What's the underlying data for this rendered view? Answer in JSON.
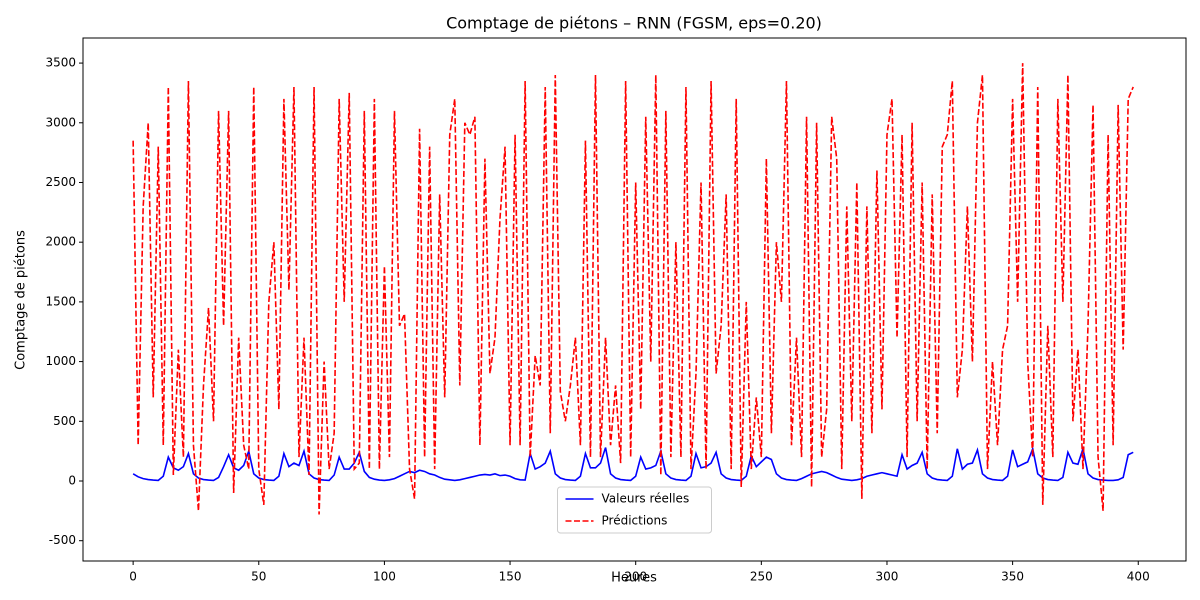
{
  "chart_data": {
    "type": "line",
    "title": "Comptage de piétons – RNN (FGSM, eps=0.20)",
    "xlabel": "Heures",
    "ylabel": "Comptage de piétons",
    "x": [
      0,
      2,
      4,
      6,
      8,
      10,
      12,
      14,
      16,
      18,
      20,
      22,
      24,
      26,
      28,
      30,
      32,
      34,
      36,
      38,
      40,
      42,
      44,
      46,
      48,
      50,
      52,
      54,
      56,
      58,
      60,
      62,
      64,
      66,
      68,
      70,
      72,
      74,
      76,
      78,
      80,
      82,
      84,
      86,
      88,
      90,
      92,
      94,
      96,
      98,
      100,
      102,
      104,
      106,
      108,
      110,
      112,
      114,
      116,
      118,
      120,
      122,
      124,
      126,
      128,
      130,
      132,
      134,
      136,
      138,
      140,
      142,
      144,
      146,
      148,
      150,
      152,
      154,
      156,
      158,
      160,
      162,
      164,
      166,
      168,
      170,
      172,
      174,
      176,
      178,
      180,
      182,
      184,
      186,
      188,
      190,
      192,
      194,
      196,
      198,
      200,
      202,
      204,
      206,
      208,
      210,
      212,
      214,
      216,
      218,
      220,
      222,
      224,
      226,
      228,
      230,
      232,
      234,
      236,
      238,
      240,
      242,
      244,
      246,
      248,
      250,
      252,
      254,
      256,
      258,
      260,
      262,
      264,
      266,
      268,
      270,
      272,
      274,
      276,
      278,
      280,
      282,
      284,
      286,
      288,
      290,
      292,
      294,
      296,
      298,
      300,
      302,
      304,
      306,
      308,
      310,
      312,
      314,
      316,
      318,
      320,
      322,
      324,
      326,
      328,
      330,
      332,
      334,
      336,
      338,
      340,
      342,
      344,
      346,
      348,
      350,
      352,
      354,
      356,
      358,
      360,
      362,
      364,
      366,
      368,
      370,
      372,
      374,
      376,
      378,
      380,
      382,
      384,
      386,
      388,
      390,
      392,
      394,
      396,
      398
    ],
    "series": [
      {
        "name": "Valeurs réelles",
        "color": "#0000ff",
        "dash": false,
        "values": [
          60,
          35,
          20,
          12,
          8,
          5,
          40,
          200,
          110,
          90,
          120,
          230,
          60,
          25,
          12,
          8,
          5,
          30,
          120,
          220,
          110,
          90,
          130,
          250,
          60,
          25,
          12,
          8,
          5,
          40,
          230,
          120,
          150,
          130,
          250,
          60,
          25,
          12,
          8,
          5,
          50,
          200,
          100,
          100,
          150,
          240,
          80,
          30,
          15,
          8,
          5,
          10,
          20,
          40,
          60,
          80,
          70,
          90,
          80,
          60,
          50,
          30,
          15,
          10,
          5,
          10,
          20,
          30,
          40,
          50,
          55,
          50,
          60,
          45,
          50,
          40,
          20,
          10,
          8,
          230,
          100,
          120,
          150,
          250,
          60,
          25,
          12,
          8,
          5,
          40,
          230,
          110,
          110,
          150,
          280,
          60,
          25,
          12,
          8,
          5,
          40,
          200,
          100,
          110,
          130,
          250,
          60,
          25,
          12,
          8,
          5,
          40,
          230,
          110,
          120,
          150,
          240,
          60,
          25,
          12,
          8,
          5,
          40,
          210,
          120,
          160,
          200,
          180,
          60,
          25,
          12,
          8,
          5,
          20,
          40,
          60,
          70,
          80,
          70,
          50,
          30,
          15,
          10,
          5,
          10,
          20,
          40,
          50,
          60,
          70,
          60,
          50,
          40,
          220,
          100,
          130,
          150,
          240,
          60,
          25,
          12,
          8,
          5,
          40,
          270,
          100,
          140,
          150,
          260,
          60,
          25,
          12,
          8,
          5,
          40,
          260,
          120,
          140,
          160,
          270,
          60,
          25,
          12,
          8,
          5,
          30,
          240,
          150,
          140,
          270,
          60,
          25,
          12,
          8,
          5,
          5,
          10,
          30,
          220,
          240
        ]
      },
      {
        "name": "Prédictions",
        "color": "#ff0000",
        "dash": true,
        "values": [
          2850,
          300,
          2300,
          3000,
          700,
          2800,
          300,
          3300,
          50,
          1100,
          200,
          3350,
          300,
          -250,
          800,
          1450,
          500,
          3100,
          1300,
          3100,
          -100,
          1200,
          300,
          100,
          3300,
          100,
          -200,
          1500,
          2000,
          600,
          3200,
          1600,
          3300,
          200,
          1200,
          50,
          3300,
          -280,
          1000,
          100,
          400,
          3200,
          1500,
          3250,
          100,
          150,
          3100,
          100,
          3200,
          100,
          1800,
          200,
          3100,
          1300,
          1400,
          100,
          -150,
          2950,
          200,
          2800,
          100,
          2400,
          700,
          2900,
          3200,
          800,
          3000,
          2900,
          3050,
          300,
          2700,
          900,
          1200,
          2200,
          2800,
          300,
          2900,
          300,
          3350,
          200,
          1050,
          800,
          3300,
          400,
          3400,
          750,
          500,
          800,
          1200,
          300,
          2850,
          200,
          3400,
          200,
          1200,
          300,
          800,
          150,
          3350,
          200,
          2500,
          600,
          3050,
          1000,
          3400,
          50,
          3100,
          200,
          2000,
          200,
          3300,
          100,
          900,
          2500,
          100,
          3350,
          900,
          1300,
          2400,
          100,
          3200,
          -50,
          1500,
          100,
          700,
          200,
          2700,
          400,
          2000,
          1500,
          3350,
          300,
          1200,
          200,
          3050,
          -50,
          3000,
          200,
          600,
          3050,
          2700,
          100,
          2300,
          500,
          2500,
          -150,
          2300,
          400,
          2600,
          600,
          2900,
          3200,
          1200,
          2900,
          200,
          3000,
          500,
          2500,
          100,
          2400,
          400,
          2800,
          2900,
          3350,
          700,
          1100,
          2300,
          1000,
          3000,
          3400,
          100,
          1000,
          300,
          1100,
          1300,
          3200,
          1500,
          3500,
          1000,
          200,
          3300,
          -200,
          1300,
          200,
          3200,
          1500,
          3400,
          500,
          1100,
          100,
          1300,
          3150,
          200,
          -250,
          2900,
          300,
          3150,
          1100,
          3200,
          3300
        ]
      }
    ],
    "xlim": [
      -19.95,
      419
    ],
    "ylim": [
      -670,
      3710
    ],
    "xticks": [
      0,
      50,
      100,
      150,
      200,
      250,
      300,
      350,
      400
    ],
    "yticks": [
      -500,
      0,
      500,
      1000,
      1500,
      2000,
      2500,
      3000,
      3500
    ],
    "legend": "lower center"
  }
}
